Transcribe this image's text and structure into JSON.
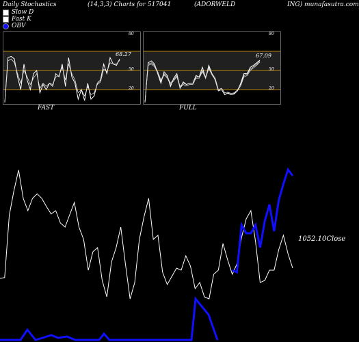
{
  "header": {
    "title": "Daily Stochastics",
    "params": "(14,3,3) Charts for 517041",
    "symbol": "(ADORWELD",
    "tail": "ING) munafasutra.com"
  },
  "legend": [
    {
      "label": "Slow  D",
      "color": "#ffffff"
    },
    {
      "label": "Fast K",
      "color": "#ffffff"
    },
    {
      "label": "OBV",
      "color": "#1010ff"
    }
  ],
  "colors": {
    "background": "#000000",
    "grid": "#b8860b",
    "price": "#ffffff",
    "obv": "#1010ff"
  },
  "chart_data": [
    {
      "type": "line",
      "name": "fast",
      "label": "FAST",
      "ylim": [
        0,
        100
      ],
      "gridlines": [
        20,
        50,
        80
      ],
      "tick_labels": [
        "80",
        "50",
        "20"
      ],
      "last_value_label": "68.27",
      "series": [
        {
          "values": [
            0,
            70,
            72,
            68,
            40,
            20,
            60,
            35,
            20,
            45,
            50,
            15,
            28,
            20,
            30,
            25,
            45,
            40,
            60,
            25,
            70,
            40,
            30,
            5,
            20,
            3,
            30,
            5,
            10,
            30,
            35,
            60,
            45,
            70,
            60,
            58,
            68
          ]
        },
        {
          "values": [
            0,
            65,
            68,
            62,
            45,
            30,
            50,
            40,
            28,
            38,
            45,
            22,
            30,
            25,
            30,
            28,
            40,
            42,
            55,
            35,
            60,
            45,
            35,
            15,
            20,
            10,
            25,
            12,
            15,
            28,
            32,
            52,
            48,
            62,
            60,
            60,
            66
          ]
        }
      ]
    },
    {
      "type": "line",
      "name": "full",
      "label": "FULL",
      "ylim": [
        0,
        100
      ],
      "gridlines": [
        20,
        50,
        80
      ],
      "tick_labels": [
        "80",
        "50",
        "20"
      ],
      "last_value_label": "67.09",
      "series": [
        {
          "values": [
            0,
            62,
            65,
            60,
            45,
            30,
            48,
            42,
            25,
            38,
            45,
            22,
            32,
            28,
            30,
            30,
            42,
            40,
            55,
            38,
            58,
            45,
            35,
            18,
            20,
            12,
            15,
            12,
            14,
            18,
            30,
            45,
            45,
            55,
            58,
            62,
            66
          ]
        },
        {
          "values": [
            0,
            60,
            62,
            58,
            48,
            35,
            45,
            40,
            30,
            36,
            42,
            25,
            30,
            28,
            30,
            30,
            40,
            40,
            50,
            40,
            55,
            45,
            38,
            20,
            22,
            15,
            16,
            14,
            15,
            20,
            28,
            42,
            44,
            52,
            56,
            60,
            65
          ]
        },
        {
          "values": [
            0,
            58,
            60,
            56,
            46,
            33,
            43,
            38,
            28,
            34,
            40,
            23,
            28,
            26,
            28,
            28,
            38,
            38,
            48,
            38,
            53,
            43,
            36,
            18,
            20,
            13,
            14,
            12,
            13,
            18,
            26,
            40,
            42,
            50,
            54,
            58,
            63
          ]
        }
      ]
    },
    {
      "type": "line",
      "name": "price-obv",
      "price_label": "1052.10Close",
      "series": [
        {
          "name": "Close",
          "values": [
            1.0,
            1.02,
            2.54,
            3.14,
            3.64,
            2.95,
            2.65,
            2.95,
            3.06,
            2.95,
            2.75,
            2.57,
            2.65,
            2.35,
            2.25,
            2.55,
            2.85,
            2.25,
            1.95,
            1.2,
            1.65,
            1.75,
            0.95,
            0.55,
            1.4,
            1.75,
            2.25,
            1.35,
            0.5,
            0.9,
            1.95,
            2.5,
            2.95,
            1.95,
            2.05,
            1.15,
            0.85,
            1.05,
            1.25,
            1.2,
            1.55,
            1.3,
            0.75,
            0.9,
            0.55,
            0.5,
            1.1,
            1.2,
            1.85,
            1.45,
            1.1,
            1.35,
            2.0,
            2.45,
            2.65,
            1.9,
            0.9,
            0.95,
            1.2,
            1.2,
            1.7,
            2.05,
            1.6,
            1.25
          ]
        },
        {
          "name": "OBV",
          "values": [
            null,
            null,
            null,
            null,
            null,
            null,
            null,
            null,
            null,
            null,
            null,
            null,
            null,
            null,
            null,
            null,
            null,
            null,
            null,
            null,
            null,
            null,
            null,
            null,
            null,
            null,
            null,
            null,
            null,
            null,
            null,
            null,
            null,
            null,
            null,
            null,
            null,
            null,
            null,
            null,
            null,
            null,
            null,
            null,
            null,
            null,
            null,
            null,
            null,
            null,
            1.2,
            1.15,
            2.3,
            2.1,
            2.1,
            2.3,
            1.75,
            2.4,
            2.8,
            2.15,
            2.9,
            3.3,
            3.65,
            3.5
          ]
        }
      ]
    }
  ]
}
